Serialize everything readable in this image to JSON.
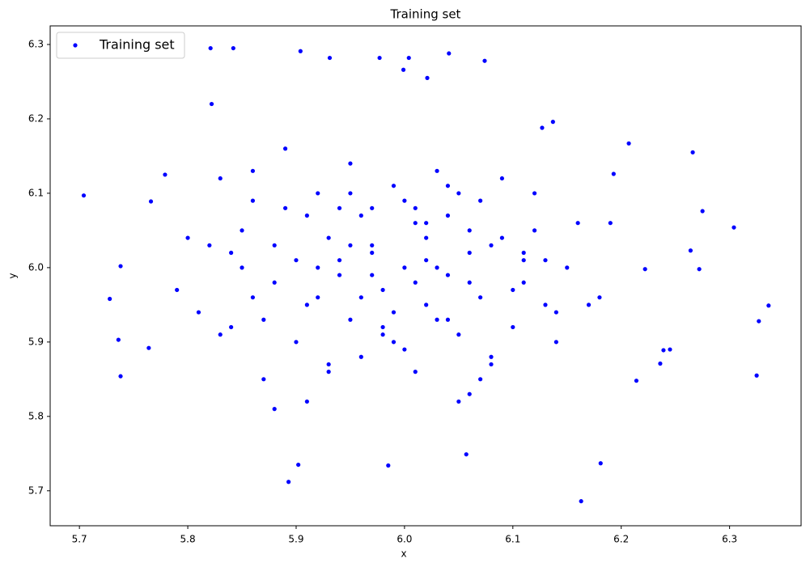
{
  "chart_data": {
    "type": "scatter",
    "title": "Training set",
    "x_label": "x",
    "y_label": "y",
    "xlim": [
      5.673,
      6.366
    ],
    "ylim": [
      5.653,
      6.325
    ],
    "xticks": [
      5.7,
      5.8,
      5.9,
      {
        "value": 6,
        "label": "6.0"
      },
      6.1,
      6.2,
      6.3
    ],
    "yticks": [
      5.7,
      5.8,
      5.9,
      {
        "value": 6,
        "label": "6.0"
      },
      6.1,
      6.2,
      6.3
    ],
    "legend": "upper left",
    "grid": false,
    "series": [
      {
        "name": "Training set",
        "color": "#0000ff",
        "x": [
          5.704,
          5.738,
          5.728,
          5.736,
          5.738,
          5.764,
          5.766,
          5.779,
          5.821,
          5.842,
          5.822,
          5.904,
          5.931,
          5.977,
          6.004,
          5.999,
          6.041,
          6.074,
          6.021,
          6.163,
          6.181,
          5.893,
          5.985,
          5.902,
          6.057,
          6.266,
          6.275,
          6.304,
          6.336,
          6.327,
          6.325,
          6.193,
          6.207,
          6.239,
          6.264,
          6.272,
          6.222,
          6.245,
          6.236,
          6.214,
          6.137,
          6.127,
          5.85,
          5.88,
          5.92,
          5.95,
          5.97,
          6.0,
          6.02,
          6.04,
          6.06,
          6.08,
          6.1,
          6.12,
          5.9,
          5.93,
          5.96,
          5.99,
          6.01,
          6.03,
          6.05,
          6.07,
          5.83,
          5.86,
          5.89,
          5.91,
          5.94,
          5.98,
          6.11,
          6.14,
          6.16,
          5.82,
          5.87,
          5.92,
          5.95,
          5.98,
          6.01,
          6.04,
          6.06,
          6.09,
          6.13,
          5.84,
          5.8,
          5.81,
          5.86,
          5.93,
          5.97,
          6.02,
          6.05,
          6.08,
          6.15,
          6.18,
          5.79,
          5.84,
          5.88,
          5.91,
          5.96,
          6.0,
          6.03,
          6.07,
          6.11,
          6.19,
          5.86,
          5.9,
          5.94,
          5.99,
          6.02,
          6.06,
          6.1,
          6.14,
          5.92,
          5.97,
          5.83,
          5.89,
          5.95,
          6.01,
          6.05,
          6.09,
          6.12,
          6.17,
          5.87,
          6.03,
          5.91,
          5.96,
          5.98,
          6.0,
          6.02,
          6.04,
          5.94,
          5.97,
          6.06,
          6.08,
          5.88,
          5.93,
          6.01,
          6.07,
          6.13,
          5.85,
          5.99,
          6.11,
          6.04,
          5.95
        ],
        "y": [
          6.097,
          6.002,
          5.958,
          5.903,
          5.854,
          5.892,
          6.089,
          6.125,
          6.295,
          6.295,
          6.22,
          6.291,
          6.282,
          6.282,
          6.282,
          6.266,
          6.288,
          6.278,
          6.255,
          5.686,
          5.737,
          5.712,
          5.734,
          5.735,
          5.749,
          6.155,
          6.076,
          6.054,
          5.949,
          5.928,
          5.855,
          6.126,
          6.167,
          5.889,
          6.023,
          5.998,
          5.998,
          5.89,
          5.871,
          5.848,
          6.196,
          6.188,
          6.05,
          5.98,
          6.1,
          5.93,
          6.02,
          6.0,
          5.95,
          6.07,
          5.98,
          6.03,
          5.92,
          6.05,
          5.9,
          6.04,
          5.88,
          6.11,
          5.86,
          6.13,
          5.91,
          6.09,
          6.12,
          5.96,
          6.16,
          5.82,
          6.08,
          5.97,
          6.01,
          5.94,
          6.06,
          6.03,
          5.85,
          6.0,
          6.14,
          5.91,
          6.06,
          5.99,
          5.83,
          6.12,
          5.95,
          5.92,
          6.04,
          5.94,
          6.09,
          5.87,
          6.03,
          6.01,
          6.1,
          5.88,
          6.0,
          5.96,
          5.97,
          6.02,
          5.81,
          6.07,
          5.96,
          6.09,
          5.93,
          5.85,
          6.02,
          6.06,
          6.13,
          6.01,
          5.99,
          5.94,
          6.04,
          6.05,
          5.97,
          5.9,
          5.96,
          6.08,
          5.91,
          6.08,
          6.03,
          5.98,
          5.82,
          6.04,
          6.1,
          5.95,
          5.93,
          6.0,
          5.95,
          6.07,
          5.92,
          5.89,
          6.06,
          5.93,
          6.01,
          5.99,
          6.02,
          5.87,
          6.03,
          5.86,
          6.08,
          5.96,
          6.01,
          6.0,
          5.9,
          5.98,
          6.11,
          6.1
        ]
      }
    ]
  }
}
